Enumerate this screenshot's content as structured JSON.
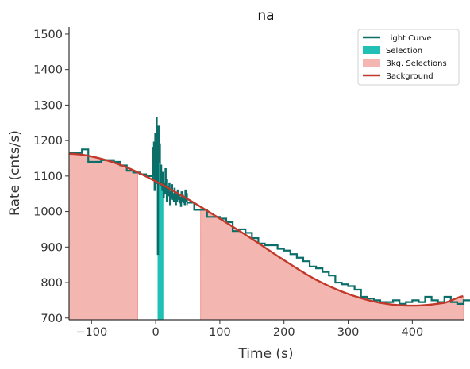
{
  "chart_data": {
    "type": "line",
    "title": "na",
    "xlabel": "Time (s)",
    "ylabel": "Rate (cnts/s)",
    "xlim": [
      -135,
      480
    ],
    "ylim": [
      695,
      1520
    ],
    "xticks": [
      -100,
      0,
      100,
      200,
      300,
      400
    ],
    "yticks": [
      700,
      800,
      900,
      1000,
      1100,
      1200,
      1300,
      1400,
      1500
    ],
    "grid": false,
    "legend_position": "top-right",
    "colors": {
      "light_curve": "#0b6e69",
      "selection": "#20c0b5",
      "bkg_selections": "#f4b6b0",
      "background": "#c0392b"
    },
    "legend": [
      {
        "label": "Light Curve",
        "kind": "line",
        "color": "#0b6e69"
      },
      {
        "label": "Selection",
        "kind": "patch",
        "color": "#20c0b5"
      },
      {
        "label": "Bkg. Selections",
        "kind": "patch",
        "color": "#f4b6b0"
      },
      {
        "label": "Background",
        "kind": "line",
        "color": "#c0392b"
      }
    ],
    "selection": [
      3,
      12
    ],
    "bkg_selections": [
      [
        -135,
        -28
      ],
      [
        70,
        480
      ]
    ],
    "light_curve_coarse": {
      "bin_width": 10,
      "segments": [
        {
          "x_start": -135,
          "values": [
            1165,
            1165,
            1175,
            1140,
            1140,
            1145,
            1145,
            1140,
            1130,
            1115,
            1110,
            1105,
            1100,
            1095
          ]
        },
        {
          "x_start": 50,
          "values": [
            1025,
            1005,
            1005,
            985,
            985,
            980,
            970,
            945,
            950,
            940,
            925,
            910,
            905,
            905,
            895,
            890,
            880,
            870,
            860,
            845,
            840,
            830,
            820,
            800,
            795,
            790,
            780,
            760,
            755,
            750,
            745,
            745,
            750,
            740,
            745,
            750,
            745,
            760,
            750,
            745,
            760,
            745,
            740,
            750
          ]
        }
      ]
    },
    "light_curve_fine": {
      "bin_width": 1,
      "x_start": -5,
      "values": [
        1180,
        1100,
        1195,
        1060,
        1220,
        1150,
        1265,
        1080,
        880,
        1240,
        1140,
        1190,
        1075,
        1130,
        1100,
        1060,
        1110,
        1040,
        1080,
        1050,
        1120,
        1090,
        1030,
        1070,
        1045,
        1060,
        1080,
        1020,
        1055,
        1040,
        1075,
        1035,
        1050,
        1030,
        1065,
        1040,
        1020,
        1050,
        1030,
        1060,
        1035,
        1045,
        1025,
        1040,
        1015,
        1055,
        1030,
        1045,
        1025,
        1040,
        1020,
        1060,
        1030,
        1050,
        1020
      ]
    },
    "background_curve": {
      "x": [
        -135,
        -100,
        -50,
        0,
        50,
        100,
        150,
        200,
        250,
        300,
        350,
        400,
        450,
        480
      ],
      "y": [
        1163,
        1155,
        1128,
        1085,
        1035,
        980,
        923,
        863,
        808,
        768,
        743,
        735,
        743,
        762
      ]
    }
  }
}
